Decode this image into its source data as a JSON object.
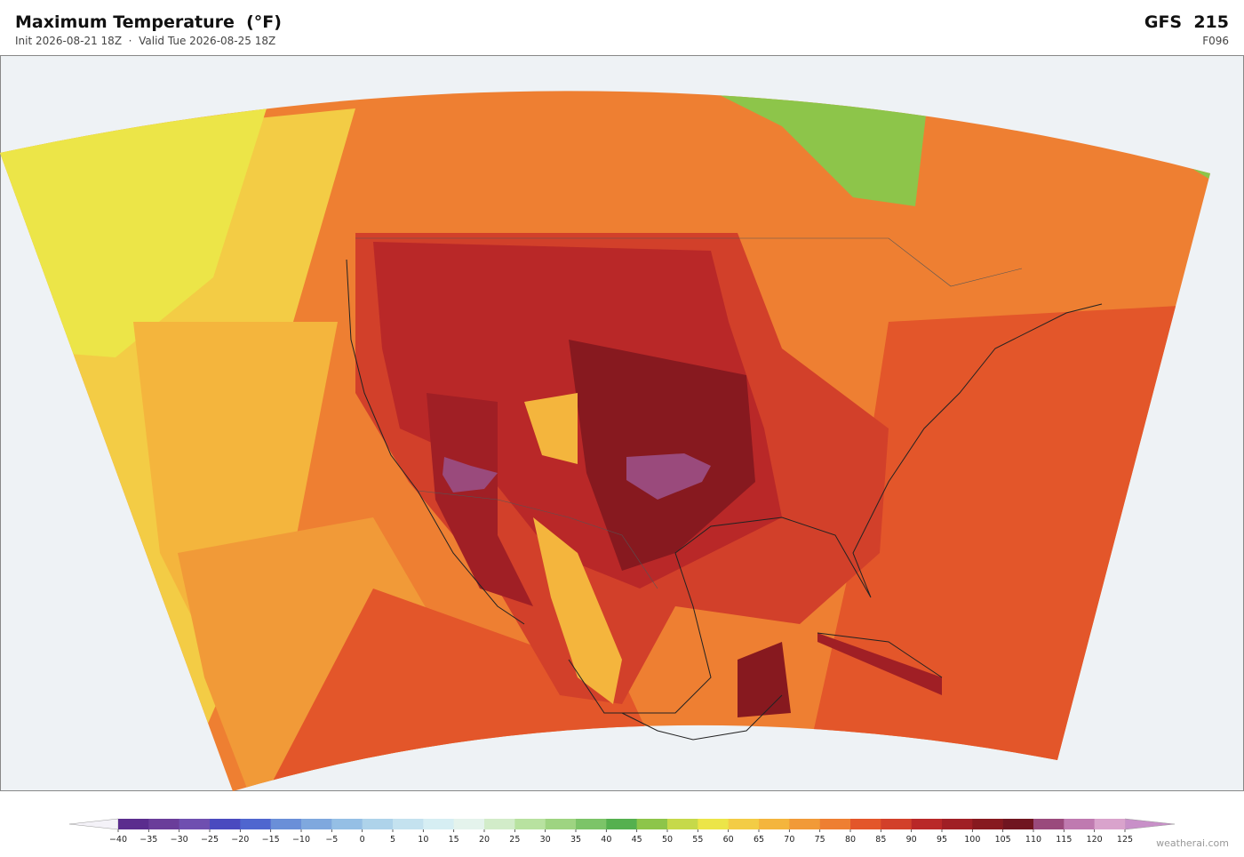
{
  "header": {
    "title": "Maximum Temperature  (°F)",
    "subtitle": "Init 2026-08-21 18Z  ·  Valid Tue 2026-08-25 18Z",
    "model": "GFS  215",
    "forecast_hour": "F096"
  },
  "colorbar": {
    "ticks": [
      {
        "value": -40,
        "label": "−40"
      },
      {
        "value": -35,
        "label": "−35"
      },
      {
        "value": -30,
        "label": "−30"
      },
      {
        "value": -25,
        "label": "−25"
      },
      {
        "value": -20,
        "label": "−20"
      },
      {
        "value": -15,
        "label": "−15"
      },
      {
        "value": -10,
        "label": "−10"
      },
      {
        "value": -5,
        "label": "−5"
      },
      0,
      5,
      10,
      15,
      20,
      25,
      30,
      35,
      40,
      45,
      50,
      55,
      60,
      65,
      70,
      75,
      80,
      85,
      90,
      95,
      100,
      105,
      110,
      115,
      120,
      125
    ],
    "colors": [
      "#5b2d8e",
      "#6a3d9a",
      "#6f4fb0",
      "#4a4abf",
      "#4f66cf",
      "#6a8fd8",
      "#7fa8de",
      "#95bfe5",
      "#aed3ea",
      "#c4e2ef",
      "#d6eef3",
      "#e4f3ec",
      "#d2ecc9",
      "#b8e2a0",
      "#9ed481",
      "#7cc468",
      "#55b04f",
      "#8dc54a",
      "#c6d94a",
      "#ece548",
      "#f3cc45",
      "#f4b53d",
      "#f19a38",
      "#ee7f32",
      "#e3562a",
      "#d2402a",
      "#b92828",
      "#a01f25",
      "#87191f",
      "#701520",
      "#9a4a7c",
      "#bf7ab0",
      "#d9a3cc"
    ],
    "under_color": "#f4f2f8",
    "over_color": "#c890c8"
  },
  "footer": {
    "credit": "weatherai.com"
  }
}
